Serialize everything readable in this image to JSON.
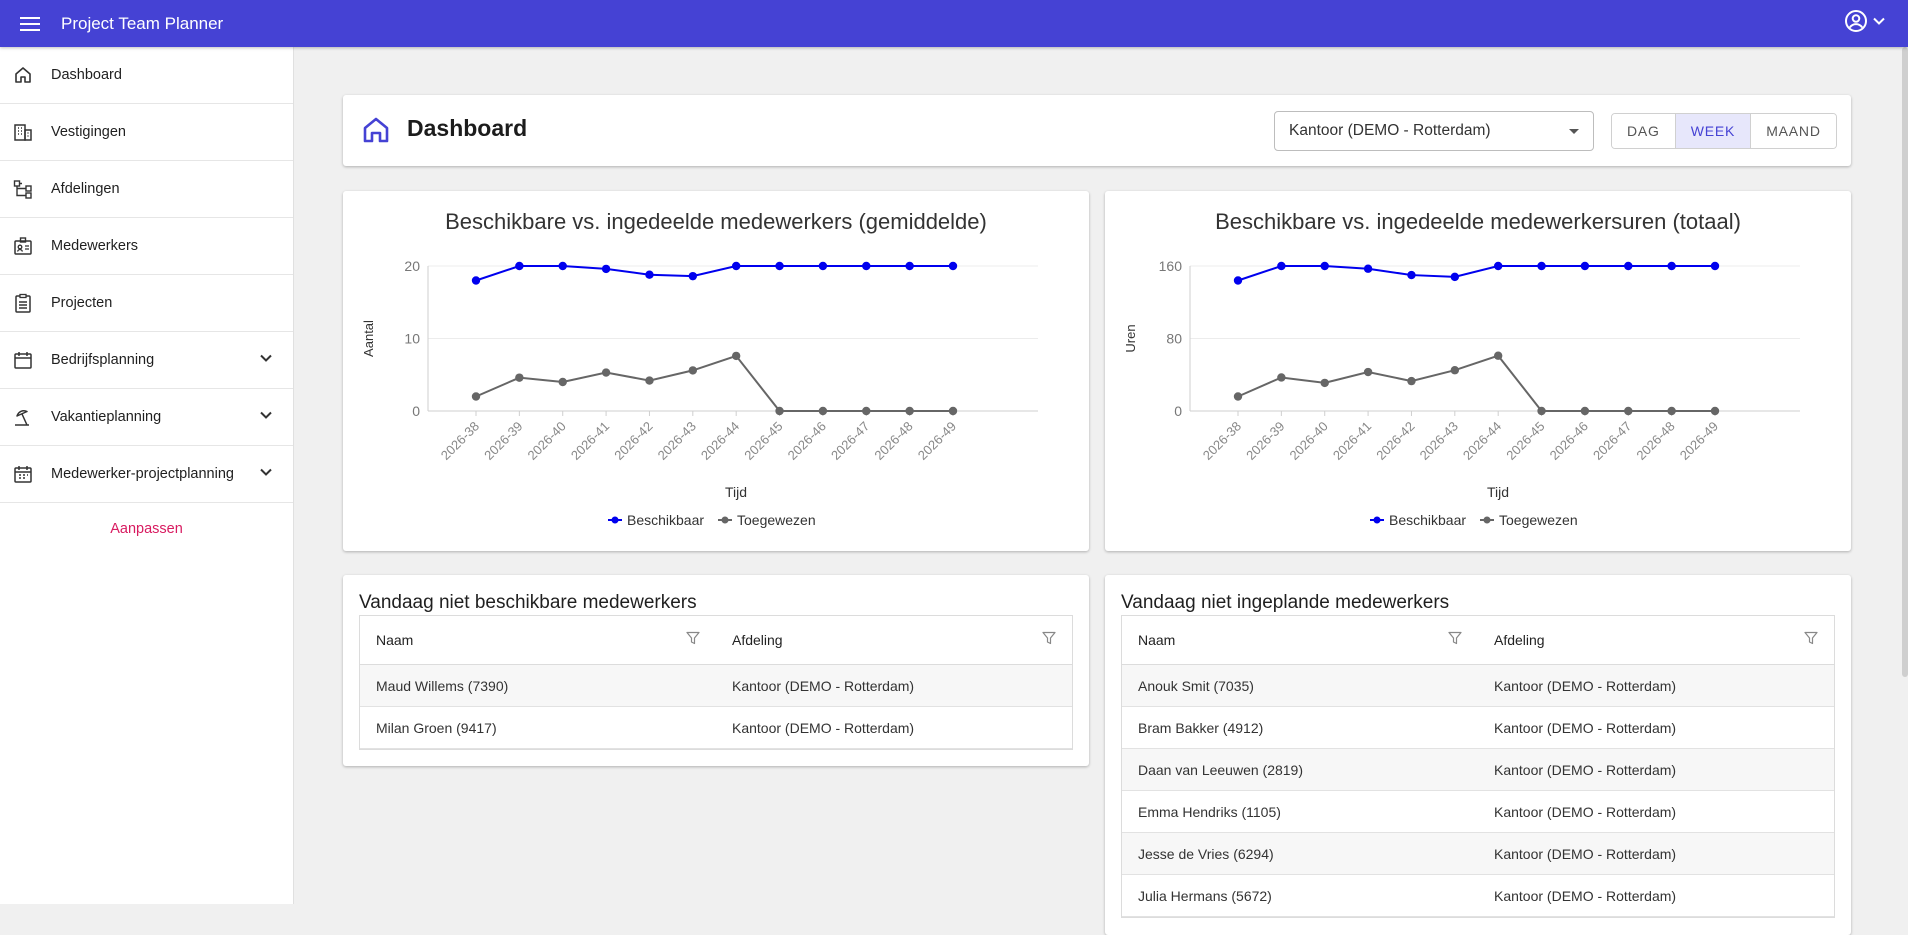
{
  "app": {
    "title": "Project Team Planner"
  },
  "sidebar": {
    "items": [
      {
        "label": "Dashboard",
        "icon": "home-icon",
        "expandable": false
      },
      {
        "label": "Vestigingen",
        "icon": "building-icon",
        "expandable": false
      },
      {
        "label": "Afdelingen",
        "icon": "hierarchy-icon",
        "expandable": false
      },
      {
        "label": "Medewerkers",
        "icon": "badge-icon",
        "expandable": false
      },
      {
        "label": "Projecten",
        "icon": "clipboard-icon",
        "expandable": false
      },
      {
        "label": "Bedrijfsplanning",
        "icon": "calendar-icon",
        "expandable": true
      },
      {
        "label": "Vakantieplanning",
        "icon": "beach-umbrella-icon",
        "expandable": true
      },
      {
        "label": "Medewerker-projectplanning",
        "icon": "calendar-icon",
        "expandable": true
      }
    ],
    "customize_label": "Aanpassen"
  },
  "header": {
    "title": "Dashboard",
    "office_selected": "Kantoor (DEMO - Rotterdam)",
    "periods": [
      "DAG",
      "WEEK",
      "MAAND"
    ],
    "active_period": "WEEK"
  },
  "colors": {
    "brand": "#4542d4",
    "available": "#0000ee",
    "assigned": "#666666",
    "accent": "#d81b60"
  },
  "chart_data": [
    {
      "type": "line",
      "title": "Beschikbare vs. ingedeelde medewerkers (gemiddelde)",
      "xlabel": "Tijd",
      "ylabel": "Aantal",
      "categories": [
        "2026-38",
        "2026-39",
        "2026-40",
        "2026-41",
        "2026-42",
        "2026-43",
        "2026-44",
        "2026-45",
        "2026-46",
        "2026-47",
        "2026-48",
        "2026-49"
      ],
      "ylim": [
        0,
        20
      ],
      "yticks": [
        0,
        10,
        20
      ],
      "grid": true,
      "legend": "bottom",
      "series": [
        {
          "name": "Beschikbaar",
          "color": "#0000ee",
          "values": [
            18,
            20,
            20,
            19.6,
            18.8,
            18.6,
            20,
            20,
            20,
            20,
            20,
            20
          ]
        },
        {
          "name": "Toegewezen",
          "color": "#666666",
          "values": [
            2,
            4.6,
            4,
            5.3,
            4.2,
            5.6,
            7.6,
            0,
            0,
            0,
            0,
            0
          ]
        }
      ]
    },
    {
      "type": "line",
      "title": "Beschikbare vs. ingedeelde medewerkersuren (totaal)",
      "xlabel": "Tijd",
      "ylabel": "Uren",
      "categories": [
        "2026-38",
        "2026-39",
        "2026-40",
        "2026-41",
        "2026-42",
        "2026-43",
        "2026-44",
        "2026-45",
        "2026-46",
        "2026-47",
        "2026-48",
        "2026-49"
      ],
      "ylim": [
        0,
        160
      ],
      "yticks": [
        0,
        80,
        160
      ],
      "grid": true,
      "legend": "bottom",
      "series": [
        {
          "name": "Beschikbaar",
          "color": "#0000ee",
          "values": [
            144,
            160,
            160,
            157,
            150,
            148,
            160,
            160,
            160,
            160,
            160,
            160
          ]
        },
        {
          "name": "Toegewezen",
          "color": "#666666",
          "values": [
            16,
            37,
            31,
            43,
            33,
            45,
            61,
            0,
            0,
            0,
            0,
            0
          ]
        }
      ]
    }
  ],
  "tables": {
    "unavailable": {
      "title": "Vandaag niet beschikbare medewerkers",
      "columns": [
        "Naam",
        "Afdeling"
      ],
      "rows": [
        [
          "Maud Willems (7390)",
          "Kantoor (DEMO - Rotterdam)"
        ],
        [
          "Milan Groen (9417)",
          "Kantoor (DEMO - Rotterdam)"
        ]
      ]
    },
    "unplanned": {
      "title": "Vandaag niet ingeplande medewerkers",
      "columns": [
        "Naam",
        "Afdeling"
      ],
      "rows": [
        [
          "Anouk Smit (7035)",
          "Kantoor (DEMO - Rotterdam)"
        ],
        [
          "Bram Bakker (4912)",
          "Kantoor (DEMO - Rotterdam)"
        ],
        [
          "Daan van Leeuwen (2819)",
          "Kantoor (DEMO - Rotterdam)"
        ],
        [
          "Emma Hendriks (1105)",
          "Kantoor (DEMO - Rotterdam)"
        ],
        [
          "Jesse de Vries (6294)",
          "Kantoor (DEMO - Rotterdam)"
        ],
        [
          "Julia Hermans (5672)",
          "Kantoor (DEMO - Rotterdam)"
        ]
      ]
    }
  }
}
